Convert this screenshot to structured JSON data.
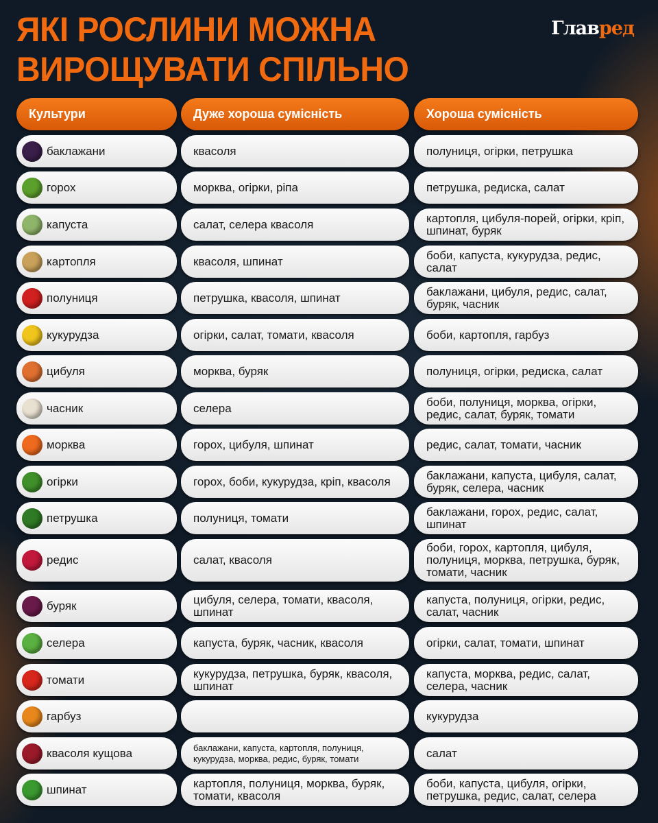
{
  "title": {
    "line1": "Які рослини можна",
    "line2": "вирощувати спільно"
  },
  "logo": {
    "main": "Глав",
    "accent": "ред"
  },
  "colors": {
    "accent": "#f26a0f",
    "background": "#0f1a26",
    "cell": "#f2f2f2"
  },
  "headers": [
    "Культури",
    "Дуже хороша сумісність",
    "Хороша сумісність"
  ],
  "rows": [
    {
      "crop": "баклажани",
      "icon": "eggplant-icon",
      "icon_color": "#3a1f4a",
      "very_good": "квасоля",
      "good": "полуниця, огірки, петрушка"
    },
    {
      "crop": "горох",
      "icon": "pea-icon",
      "icon_color": "#5ca02c",
      "very_good": "морква, огірки, ріпа",
      "good": "петрушка, редиска, салат"
    },
    {
      "crop": "капуста",
      "icon": "cabbage-icon",
      "icon_color": "#8fb56a",
      "very_good": "салат, селера квасоля",
      "good": "картопля, цибуля-порей, огірки, кріп, шпинат, буряк"
    },
    {
      "crop": "картопля",
      "icon": "potato-icon",
      "icon_color": "#c9a15a",
      "very_good": "квасоля, шпинат",
      "good": "боби, капуста, кукурудза, редис, салат"
    },
    {
      "crop": "полуниця",
      "icon": "strawberry-icon",
      "icon_color": "#d0201f",
      "very_good": "петрушка, квасоля, шпинат",
      "good": "баклажани, цибуля, редис, салат, буряк, часник"
    },
    {
      "crop": "кукурудза",
      "icon": "corn-icon",
      "icon_color": "#f0c51c",
      "very_good": "огірки, салат, томати, квасоля",
      "good": "боби, картопля, гарбуз"
    },
    {
      "crop": "цибуля",
      "icon": "onion-icon",
      "icon_color": "#e07030",
      "very_good": "морква, буряк",
      "good": "полуниця, огірки, редиска, салат"
    },
    {
      "crop": "часник",
      "icon": "garlic-icon",
      "icon_color": "#e8e0d0",
      "very_good": "селера",
      "good": "боби, полуниця, морква, огірки, редис, салат, буряк, томати"
    },
    {
      "crop": "морква",
      "icon": "carrot-icon",
      "icon_color": "#ee6a1e",
      "very_good": "горох, цибуля, шпинат",
      "good": "редис, салат, томати, часник"
    },
    {
      "crop": "огірки",
      "icon": "cucumber-icon",
      "icon_color": "#3f8f2a",
      "very_good": "горох, боби, кукурудза, кріп, квасоля",
      "good": "баклажани, капуста, цибуля, салат, буряк, селера, часник"
    },
    {
      "crop": "петрушка",
      "icon": "parsley-icon",
      "icon_color": "#2f7a25",
      "very_good": "полуниця, томати",
      "good": "баклажани, горох, редис, салат, шпинат"
    },
    {
      "crop": "редис",
      "icon": "radish-icon",
      "icon_color": "#c2183c",
      "very_good": "салат, квасоля",
      "good": "боби, горох, картопля, цибуля, полуниця, морква, петрушка, буряк, томати, часник"
    },
    {
      "crop": "буряк",
      "icon": "beet-icon",
      "icon_color": "#6a1a4a",
      "very_good": "цибуля, селера, томати, квасоля, шпинат",
      "good": "капуста, полуниця, огірки, редис, салат, часник"
    },
    {
      "crop": "селера",
      "icon": "celery-icon",
      "icon_color": "#5ab040",
      "very_good": "капуста, буряк, часник, квасоля",
      "good": "огірки, салат, томати, шпинат"
    },
    {
      "crop": "томати",
      "icon": "tomato-icon",
      "icon_color": "#d8261c",
      "very_good": "кукурудза, петрушка, буряк, квасоля, шпинат",
      "good": "капуста, морква, редис, салат, селера, часник"
    },
    {
      "crop": "гарбуз",
      "icon": "pumpkin-icon",
      "icon_color": "#e8881c",
      "very_good": "",
      "good": "кукурудза"
    },
    {
      "crop": "квасоля кущова",
      "icon": "bean-icon",
      "icon_color": "#9a1a2a",
      "very_good": "баклажани, капуста, картопля, полуниця, кукурудза, морква, редис, буряк, томати",
      "good": "салат"
    },
    {
      "crop": "шпинат",
      "icon": "spinach-icon",
      "icon_color": "#3a9a30",
      "very_good": "картопля, полуниця, морква, буряк, томати, квасоля",
      "good": "боби, капуста, цибуля, огірки, петрушка, редис, салат, селера"
    }
  ]
}
